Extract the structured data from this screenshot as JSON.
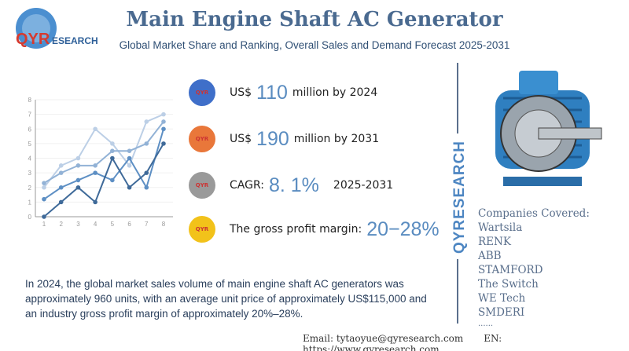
{
  "brand": {
    "logo_text": "QYRESEARCH",
    "vertical_text": "QYRESEARCH"
  },
  "header": {
    "title": "Main Engine Shaft AC Generator",
    "subtitle": "Global Market Share and Ranking, Overall Sales and Demand Forecast 2025-2031"
  },
  "stats": [
    {
      "prefix": "US$",
      "value": "110",
      "suffix": "million by 2024",
      "color": "#3f6fc9"
    },
    {
      "prefix": "US$",
      "value": "190",
      "suffix": "million by 2031",
      "color": "#e9773a"
    },
    {
      "prefix": "CAGR:",
      "value": "8. 1%",
      "suffix": "2025-2031",
      "color": "#9a9a9a"
    },
    {
      "prefix": "The gross profit margin:",
      "value": "20−28%",
      "suffix": "",
      "color": "#f2c21a"
    }
  ],
  "companies": {
    "heading": "Companies Covered:",
    "items": [
      "Wartsila",
      "RENK",
      "ABB",
      "STAMFORD",
      "The Switch",
      "WE Tech",
      "SMDERI",
      "......"
    ]
  },
  "description": "In 2024, the global market sales volume of main engine shaft AC generators was approximately 960 units, with an average unit price of approximately US$115,000 and an industry gross profit margin of approximately 20%–28%.",
  "footer": {
    "email": "Email:  tytaoyue@qyresearch.com",
    "website": "EN: https://www.qyresearch.com"
  },
  "chart_data": {
    "type": "line",
    "x": [
      1,
      2,
      3,
      4,
      5,
      6,
      7,
      8
    ],
    "xlim": [
      1,
      8
    ],
    "ylim": [
      0,
      8
    ],
    "yticks": [
      0,
      1,
      2,
      3,
      4,
      5,
      6,
      7,
      8
    ],
    "grid": true,
    "series": [
      {
        "values": [
          2,
          3.5,
          4,
          6,
          5,
          3.5,
          6.5,
          7
        ],
        "color": "#bccfe6"
      },
      {
        "values": [
          2.3,
          3,
          3.5,
          3.5,
          4.5,
          4.5,
          5,
          6.5
        ],
        "color": "#92b2d6"
      },
      {
        "values": [
          1.2,
          2,
          2.5,
          3,
          2.5,
          4,
          2,
          6
        ],
        "color": "#5d8fc4"
      },
      {
        "values": [
          0,
          1,
          2,
          1,
          4,
          2,
          3,
          5
        ],
        "color": "#3f6a99"
      }
    ]
  }
}
